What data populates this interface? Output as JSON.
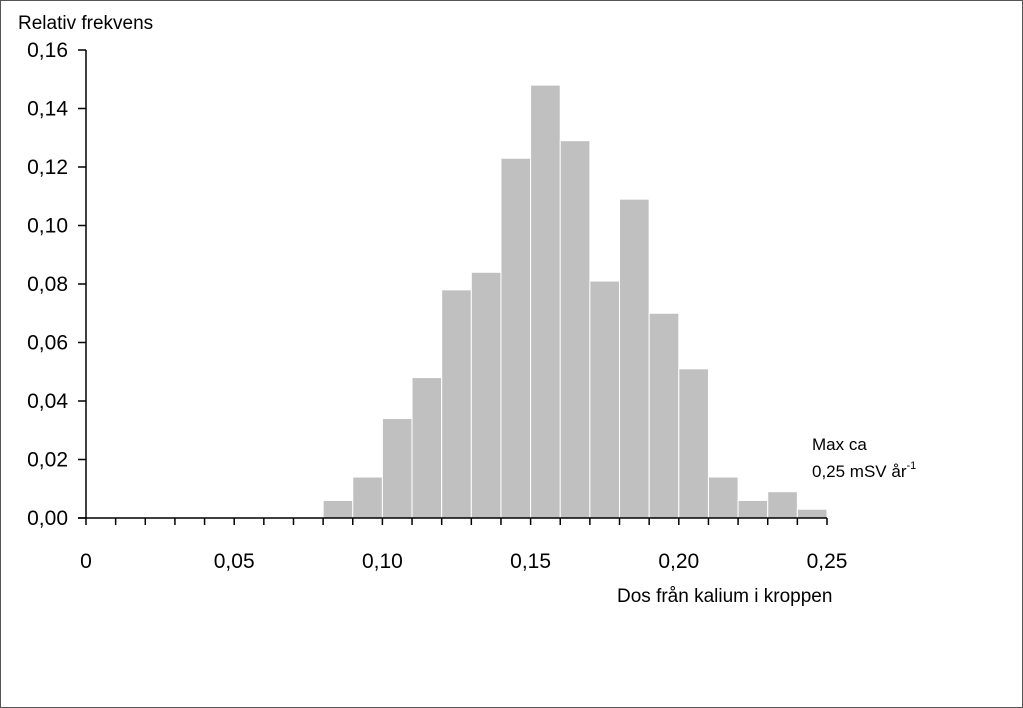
{
  "chart_data": {
    "type": "bar",
    "ylabel": "Relativ frekvens",
    "xlabel": "Dos från kalium i kroppen",
    "annotation": {
      "line1": "Max ca",
      "line2_prefix": "0,25 mSV år",
      "line2_superscript": "-1"
    },
    "bar_color": "#c0c0c0",
    "bar_edge_color": "#ffffff",
    "xlim": [
      0,
      0.25
    ],
    "ylim": [
      0,
      0.16
    ],
    "x_tick_labels": [
      {
        "value": 0,
        "label": "0"
      },
      {
        "value": 0.05,
        "label": "0,05"
      },
      {
        "value": 0.1,
        "label": "0,10"
      },
      {
        "value": 0.15,
        "label": "0,15"
      },
      {
        "value": 0.2,
        "label": "0,20"
      },
      {
        "value": 0.25,
        "label": "0,25"
      }
    ],
    "x_minor_tick_step": 0.01,
    "y_tick_labels": [
      {
        "value": 0,
        "label": "0,00"
      },
      {
        "value": 0.02,
        "label": "0,02"
      },
      {
        "value": 0.04,
        "label": "0,04"
      },
      {
        "value": 0.06,
        "label": "0,06"
      },
      {
        "value": 0.08,
        "label": "0,08"
      },
      {
        "value": 0.1,
        "label": "0,10"
      },
      {
        "value": 0.12,
        "label": "0,12"
      },
      {
        "value": 0.14,
        "label": "0,14"
      },
      {
        "value": 0.16,
        "label": "0,16"
      }
    ],
    "bin_width": 0.01,
    "bins": [
      {
        "x0": 0.08,
        "value": 0.006
      },
      {
        "x0": 0.09,
        "value": 0.014
      },
      {
        "x0": 0.1,
        "value": 0.034
      },
      {
        "x0": 0.11,
        "value": 0.048
      },
      {
        "x0": 0.12,
        "value": 0.078
      },
      {
        "x0": 0.13,
        "value": 0.084
      },
      {
        "x0": 0.14,
        "value": 0.123
      },
      {
        "x0": 0.15,
        "value": 0.148
      },
      {
        "x0": 0.16,
        "value": 0.129
      },
      {
        "x0": 0.17,
        "value": 0.081
      },
      {
        "x0": 0.18,
        "value": 0.109
      },
      {
        "x0": 0.19,
        "value": 0.07
      },
      {
        "x0": 0.2,
        "value": 0.051
      },
      {
        "x0": 0.21,
        "value": 0.014
      },
      {
        "x0": 0.22,
        "value": 0.006
      },
      {
        "x0": 0.23,
        "value": 0.009
      },
      {
        "x0": 0.24,
        "value": 0.003
      }
    ],
    "grid": false,
    "legend": "none"
  }
}
